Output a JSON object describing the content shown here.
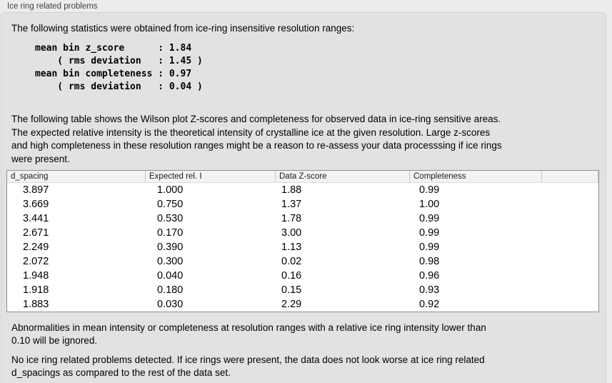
{
  "section": {
    "title": "Ice ring related problems"
  },
  "intro": {
    "text": "The following statistics were obtained from ice-ring insensitive resolution ranges:",
    "stats_block": "mean bin z_score      : 1.84\n    ( rms deviation   : 1.45 )\nmean bin completeness : 0.97\n    ( rms deviation   : 0.04 )"
  },
  "description": {
    "text": "The following table shows the Wilson plot Z-scores and completeness for observed data in ice-ring sensitive areas.\nThe expected relative intensity is the theoretical intensity of crystalline ice at the given resolution. Large z-scores\nand high completeness in these resolution ranges might be a reason to re-assess your data processsing if ice rings\nwere present."
  },
  "table": {
    "columns": [
      "d_spacing",
      "Expected rel. I",
      "Data Z-score",
      "Completeness",
      ""
    ],
    "rows": [
      [
        "3.897",
        "1.000",
        "1.88",
        "0.99"
      ],
      [
        "3.669",
        "0.750",
        "1.37",
        "1.00"
      ],
      [
        "3.441",
        "0.530",
        "1.78",
        "0.99"
      ],
      [
        "2.671",
        "0.170",
        "3.00",
        "0.99"
      ],
      [
        "2.249",
        "0.390",
        "1.13",
        "0.99"
      ],
      [
        "2.072",
        "0.300",
        "0.02",
        "0.98"
      ],
      [
        "1.948",
        "0.040",
        "0.16",
        "0.96"
      ],
      [
        "1.918",
        "0.180",
        "0.15",
        "0.93"
      ],
      [
        "1.883",
        "0.030",
        "2.29",
        "0.92"
      ]
    ]
  },
  "notes": {
    "ignore_note": "Abnormalities in mean intensity or completeness at resolution ranges with a relative ice ring intensity lower than\n0.10 will be ignored.",
    "result_note": "No ice ring related problems detected. If ice rings were present, the data does not look worse at ice ring related\nd_spacings as compared to the rest of the data set."
  },
  "colors": {
    "page_background": "#ececec",
    "panel_background": "#e2e2e2",
    "panel_border": "#d2d2d2",
    "table_border": "#8f8f8f",
    "table_header_background": "#f3f3f3"
  }
}
